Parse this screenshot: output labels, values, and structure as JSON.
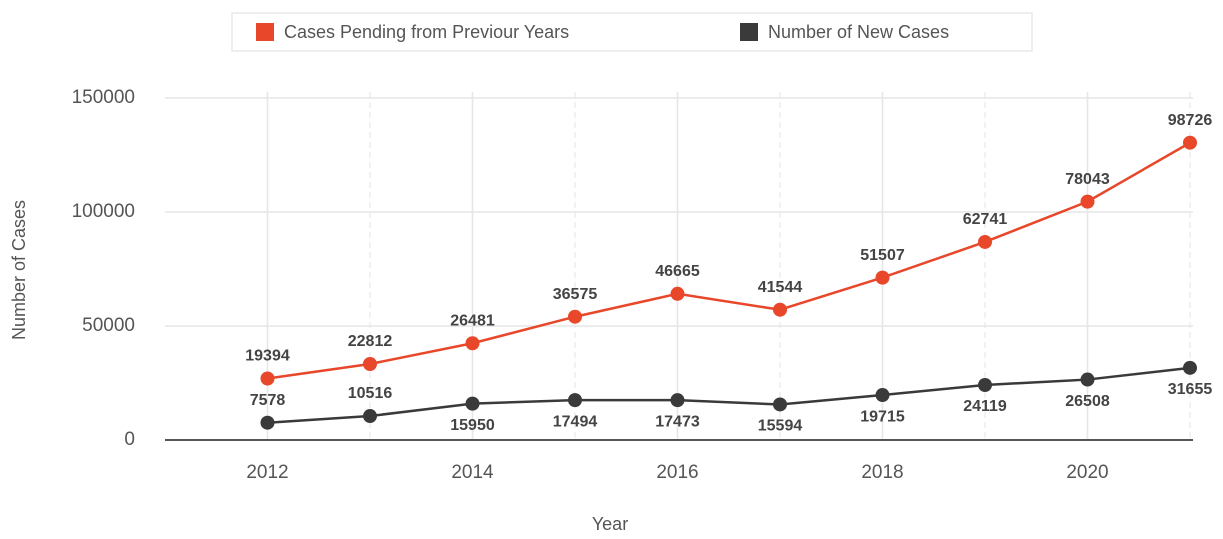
{
  "chart_data": {
    "type": "line",
    "stacked": true,
    "x": [
      2012,
      2013,
      2014,
      2015,
      2016,
      2017,
      2018,
      2019,
      2020,
      2021
    ],
    "series": [
      {
        "name": "Cases Pending from Previour Years",
        "color": "#e8472a",
        "values": [
          19394,
          22812,
          26481,
          36575,
          46665,
          41544,
          51507,
          62741,
          78043,
          98726
        ]
      },
      {
        "name": "Number of New Cases",
        "color": "#3a3a3a",
        "values": [
          7578,
          10516,
          15950,
          17494,
          17473,
          15594,
          19715,
          24119,
          26508,
          31655
        ]
      }
    ],
    "xlabel": "Year",
    "ylabel": "Number of Cases",
    "xlim": [
      2011,
      2021
    ],
    "xticks": [
      2012,
      2014,
      2016,
      2018,
      2020
    ],
    "ylim": [
      0,
      150000
    ],
    "yticks": [
      0,
      50000,
      100000,
      150000
    ],
    "grid": true,
    "legend": "top"
  }
}
